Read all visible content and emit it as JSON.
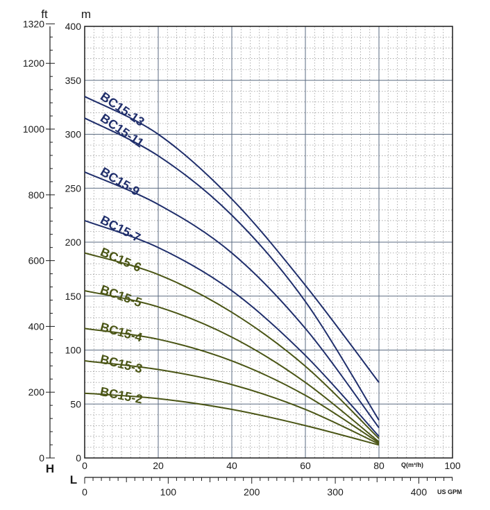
{
  "chart_data": {
    "type": "line",
    "axes": {
      "ft_unit": "ft",
      "m_unit": "m",
      "h_label": "H",
      "l_label": "L",
      "q_label": "Q(m³/h)",
      "gpm_label": "US GPM",
      "x_m3h": {
        "range": [
          0,
          100
        ],
        "ticks": [
          "0",
          "20",
          "40",
          "60",
          "80",
          "100"
        ]
      },
      "y_m": {
        "range": [
          0,
          400
        ],
        "ticks": [
          "0",
          "50",
          "100",
          "150",
          "200",
          "250",
          "300",
          "350",
          "400"
        ]
      },
      "y_ft": {
        "ticks": [
          "0",
          "200",
          "400",
          "600",
          "800",
          "1000",
          "1200",
          "1320"
        ]
      },
      "x_gpm": {
        "ticks": [
          "0",
          "100",
          "200",
          "300",
          "400"
        ]
      }
    },
    "grid": true,
    "colors": {
      "dark_series": "#1f2e6b",
      "light_series": "#4a5515",
      "grid": "#8a8a8a",
      "major_grid": "#5a6a80"
    },
    "series": [
      {
        "name": "BC15-13",
        "color": "dark",
        "x": [
          0,
          20,
          40,
          60,
          80
        ],
        "y": [
          335,
          300,
          240,
          160,
          70
        ]
      },
      {
        "name": "BC15-11",
        "color": "dark",
        "x": [
          0,
          20,
          40,
          60,
          80
        ],
        "y": [
          315,
          280,
          225,
          145,
          35
        ]
      },
      {
        "name": "BC15-9",
        "color": "dark",
        "x": [
          0,
          20,
          40,
          60,
          80
        ],
        "y": [
          265,
          235,
          190,
          120,
          28
        ]
      },
      {
        "name": "BC15-7",
        "color": "dark",
        "x": [
          0,
          20,
          40,
          60,
          80
        ],
        "y": [
          220,
          195,
          155,
          95,
          20
        ]
      },
      {
        "name": "BC15-6",
        "color": "light",
        "x": [
          0,
          20,
          40,
          60,
          80
        ],
        "y": [
          190,
          170,
          135,
          85,
          18
        ]
      },
      {
        "name": "BC15-5",
        "color": "light",
        "x": [
          0,
          20,
          40,
          60,
          80
        ],
        "y": [
          155,
          140,
          112,
          70,
          15
        ]
      },
      {
        "name": "BC15-4",
        "color": "light",
        "x": [
          0,
          20,
          40,
          60,
          80
        ],
        "y": [
          120,
          110,
          90,
          58,
          14
        ]
      },
      {
        "name": "BC15-3",
        "color": "light",
        "x": [
          0,
          20,
          40,
          60,
          80
        ],
        "y": [
          90,
          82,
          68,
          45,
          13
        ]
      },
      {
        "name": "BC15-2",
        "color": "light",
        "x": [
          0,
          20,
          40,
          60,
          80
        ],
        "y": [
          60,
          55,
          45,
          30,
          12
        ]
      }
    ]
  }
}
